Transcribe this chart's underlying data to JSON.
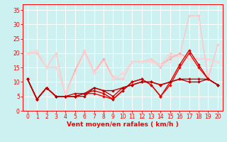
{
  "x": [
    0,
    1,
    2,
    3,
    4,
    5,
    6,
    7,
    8,
    9,
    10,
    11,
    12,
    13,
    14,
    15,
    16,
    17,
    18,
    19,
    20
  ],
  "series_pink": [
    {
      "y": [
        20,
        20,
        15,
        20,
        5,
        14,
        21,
        13,
        18,
        11,
        11,
        17,
        17,
        18,
        15,
        19,
        19,
        33,
        33,
        11,
        23
      ],
      "color": "#ffbbbb",
      "lw": 0.8,
      "marker": "D",
      "ms": 1.8
    },
    {
      "y": [
        20,
        20,
        15,
        20,
        5,
        14,
        21,
        14,
        18,
        12,
        11,
        17,
        17,
        18,
        16,
        20,
        19,
        33,
        33,
        12,
        23
      ],
      "color": "#ffcccc",
      "lw": 0.8,
      "marker": "D",
      "ms": 1.8
    },
    {
      "y": [
        20,
        21,
        15,
        15,
        6,
        14,
        20,
        13,
        18,
        11,
        13,
        17,
        17,
        17,
        16,
        18,
        20,
        18,
        18,
        18,
        17
      ],
      "color": "#ffaaaa",
      "lw": 0.8,
      "marker": "D",
      "ms": 1.8
    },
    {
      "y": [
        20,
        21,
        15,
        15,
        6,
        13,
        20,
        13,
        17,
        11,
        13,
        17,
        17,
        17,
        16,
        17,
        19,
        18,
        18,
        18,
        17
      ],
      "color": "#ffdddd",
      "lw": 0.8,
      "marker": "D",
      "ms": 1.8
    }
  ],
  "series_red": [
    {
      "y": [
        11,
        4,
        8,
        5,
        5,
        5,
        6,
        6,
        5,
        4,
        7,
        10,
        11,
        9,
        5,
        9,
        15,
        20,
        15,
        11,
        9
      ],
      "color": "#ff0000",
      "lw": 1.0,
      "marker": "D",
      "ms": 2.0
    },
    {
      "y": [
        11,
        4,
        8,
        5,
        5,
        6,
        6,
        7,
        6,
        4,
        7,
        10,
        11,
        9,
        5,
        10,
        16,
        21,
        16,
        11,
        9
      ],
      "color": "#dd0000",
      "lw": 1.0,
      "marker": "D",
      "ms": 2.0
    },
    {
      "y": [
        11,
        4,
        8,
        5,
        5,
        5,
        6,
        8,
        7,
        5,
        8,
        9,
        10,
        10,
        9,
        10,
        11,
        11,
        11,
        11,
        9
      ],
      "color": "#cc0000",
      "lw": 1.0,
      "marker": "D",
      "ms": 2.0
    },
    {
      "y": [
        11,
        4,
        8,
        5,
        5,
        5,
        5,
        8,
        7,
        7,
        8,
        9,
        10,
        10,
        9,
        10,
        11,
        10,
        10,
        11,
        9
      ],
      "color": "#bb0000",
      "lw": 1.0,
      "marker": "D",
      "ms": 2.0
    }
  ],
  "xlabel": "Vent moyen/en rafales ( km/h )",
  "ylim": [
    0,
    37
  ],
  "xlim": [
    -0.5,
    20.5
  ],
  "yticks": [
    0,
    5,
    10,
    15,
    20,
    25,
    30,
    35
  ],
  "xticks": [
    0,
    1,
    2,
    3,
    4,
    5,
    6,
    7,
    8,
    9,
    10,
    11,
    12,
    13,
    14,
    15,
    16,
    17,
    18,
    19,
    20
  ],
  "bg_color": "#cdf0f0",
  "grid_color": "#ffffff",
  "tick_color": "#ff0000",
  "label_color": "#ff0000",
  "tick_fontsize": 5.5,
  "xlabel_fontsize": 6.5
}
